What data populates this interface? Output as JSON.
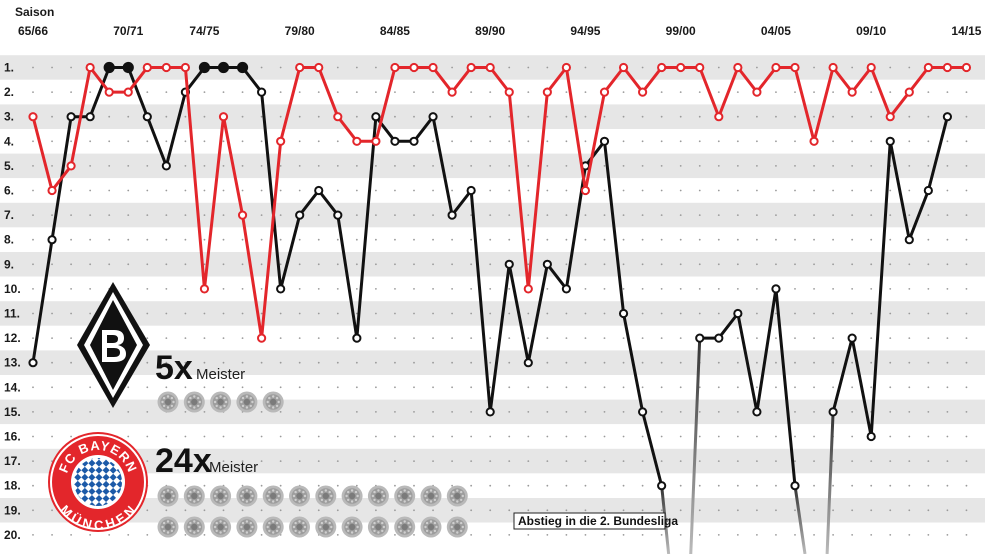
{
  "chart_data": {
    "type": "line",
    "x_axis_label": "Saison",
    "x_ticks": [
      "65/66",
      "70/71",
      "74/75",
      "79/80",
      "84/85",
      "89/90",
      "94/95",
      "99/00",
      "04/05",
      "09/10",
      "14/15"
    ],
    "y_ticks": [
      "1.",
      "2.",
      "3.",
      "4.",
      "5.",
      "6.",
      "7.",
      "8.",
      "9.",
      "10.",
      "11.",
      "12.",
      "13.",
      "14.",
      "15.",
      "16.",
      "17.",
      "18.",
      "19.",
      "20."
    ],
    "y_range": [
      1,
      20
    ],
    "y_inverted": true,
    "x_range": [
      1965,
      2014
    ],
    "series": [
      {
        "team": "Bayern München",
        "color": "#e3262b",
        "points": [
          [
            1965,
            3
          ],
          [
            1966,
            6
          ],
          [
            1967,
            5
          ],
          [
            1968,
            1
          ],
          [
            1969,
            2
          ],
          [
            1970,
            2
          ],
          [
            1971,
            1
          ],
          [
            1972,
            1
          ],
          [
            1973,
            1
          ],
          [
            1974,
            10
          ],
          [
            1975,
            3
          ],
          [
            1976,
            7
          ],
          [
            1977,
            12
          ],
          [
            1978,
            4
          ],
          [
            1979,
            1
          ],
          [
            1980,
            1
          ],
          [
            1981,
            3
          ],
          [
            1982,
            4
          ],
          [
            1983,
            4
          ],
          [
            1984,
            1
          ],
          [
            1985,
            1
          ],
          [
            1986,
            1
          ],
          [
            1987,
            2
          ],
          [
            1988,
            1
          ],
          [
            1989,
            1
          ],
          [
            1990,
            2
          ],
          [
            1991,
            10
          ],
          [
            1992,
            2
          ],
          [
            1993,
            1
          ],
          [
            1994,
            6
          ],
          [
            1995,
            2
          ],
          [
            1996,
            1
          ],
          [
            1997,
            2
          ],
          [
            1998,
            1
          ],
          [
            1999,
            1
          ],
          [
            2000,
            1
          ],
          [
            2001,
            3
          ],
          [
            2002,
            1
          ],
          [
            2003,
            2
          ],
          [
            2004,
            1
          ],
          [
            2005,
            1
          ],
          [
            2006,
            4
          ],
          [
            2007,
            1
          ],
          [
            2008,
            2
          ],
          [
            2009,
            1
          ],
          [
            2010,
            3
          ],
          [
            2011,
            2
          ],
          [
            2012,
            1
          ],
          [
            2013,
            1
          ],
          [
            2014,
            1
          ]
        ]
      },
      {
        "team": "Borussia Mönchengladbach",
        "color": "#111111",
        "points": [
          [
            1965,
            13
          ],
          [
            1966,
            8
          ],
          [
            1967,
            3
          ],
          [
            1968,
            3
          ],
          [
            1969,
            1
          ],
          [
            1970,
            1
          ],
          [
            1971,
            3
          ],
          [
            1972,
            5
          ],
          [
            1973,
            2
          ],
          [
            1974,
            1
          ],
          [
            1975,
            1
          ],
          [
            1976,
            1
          ],
          [
            1977,
            2
          ],
          [
            1978,
            10
          ],
          [
            1979,
            7
          ],
          [
            1980,
            6
          ],
          [
            1981,
            7
          ],
          [
            1982,
            12
          ],
          [
            1983,
            3
          ],
          [
            1984,
            4
          ],
          [
            1985,
            4
          ],
          [
            1986,
            3
          ],
          [
            1987,
            7
          ],
          [
            1988,
            6
          ],
          [
            1989,
            15
          ],
          [
            1990,
            9
          ],
          [
            1991,
            13
          ],
          [
            1992,
            9
          ],
          [
            1993,
            10
          ],
          [
            1994,
            5
          ],
          [
            1995,
            4
          ],
          [
            1996,
            11
          ],
          [
            1997,
            15
          ],
          [
            1998,
            18
          ]
        ],
        "points_2": [
          [
            2000,
            12
          ],
          [
            2001,
            12
          ],
          [
            2002,
            11
          ],
          [
            2003,
            15
          ],
          [
            2004,
            10
          ],
          [
            2005,
            18
          ]
        ],
        "points_3": [
          [
            2007,
            15
          ],
          [
            2008,
            12
          ],
          [
            2009,
            16
          ],
          [
            2010,
            4
          ],
          [
            2011,
            8
          ],
          [
            2012,
            6
          ],
          [
            2013,
            3
          ]
        ],
        "champion_seasons": [
          1969,
          1970,
          1974,
          1975,
          1976
        ]
      }
    ],
    "relegation_note": "Abstieg in die 2. Bundesliga"
  },
  "legend": {
    "gladbach": {
      "count": "5x",
      "label": "Meister",
      "titles": 5
    },
    "bayern": {
      "count": "24x",
      "label": "Meister",
      "titles": 24,
      "logo_text_top": "FC BAYERN",
      "logo_text_bottom": "MÜNCHEN"
    }
  }
}
